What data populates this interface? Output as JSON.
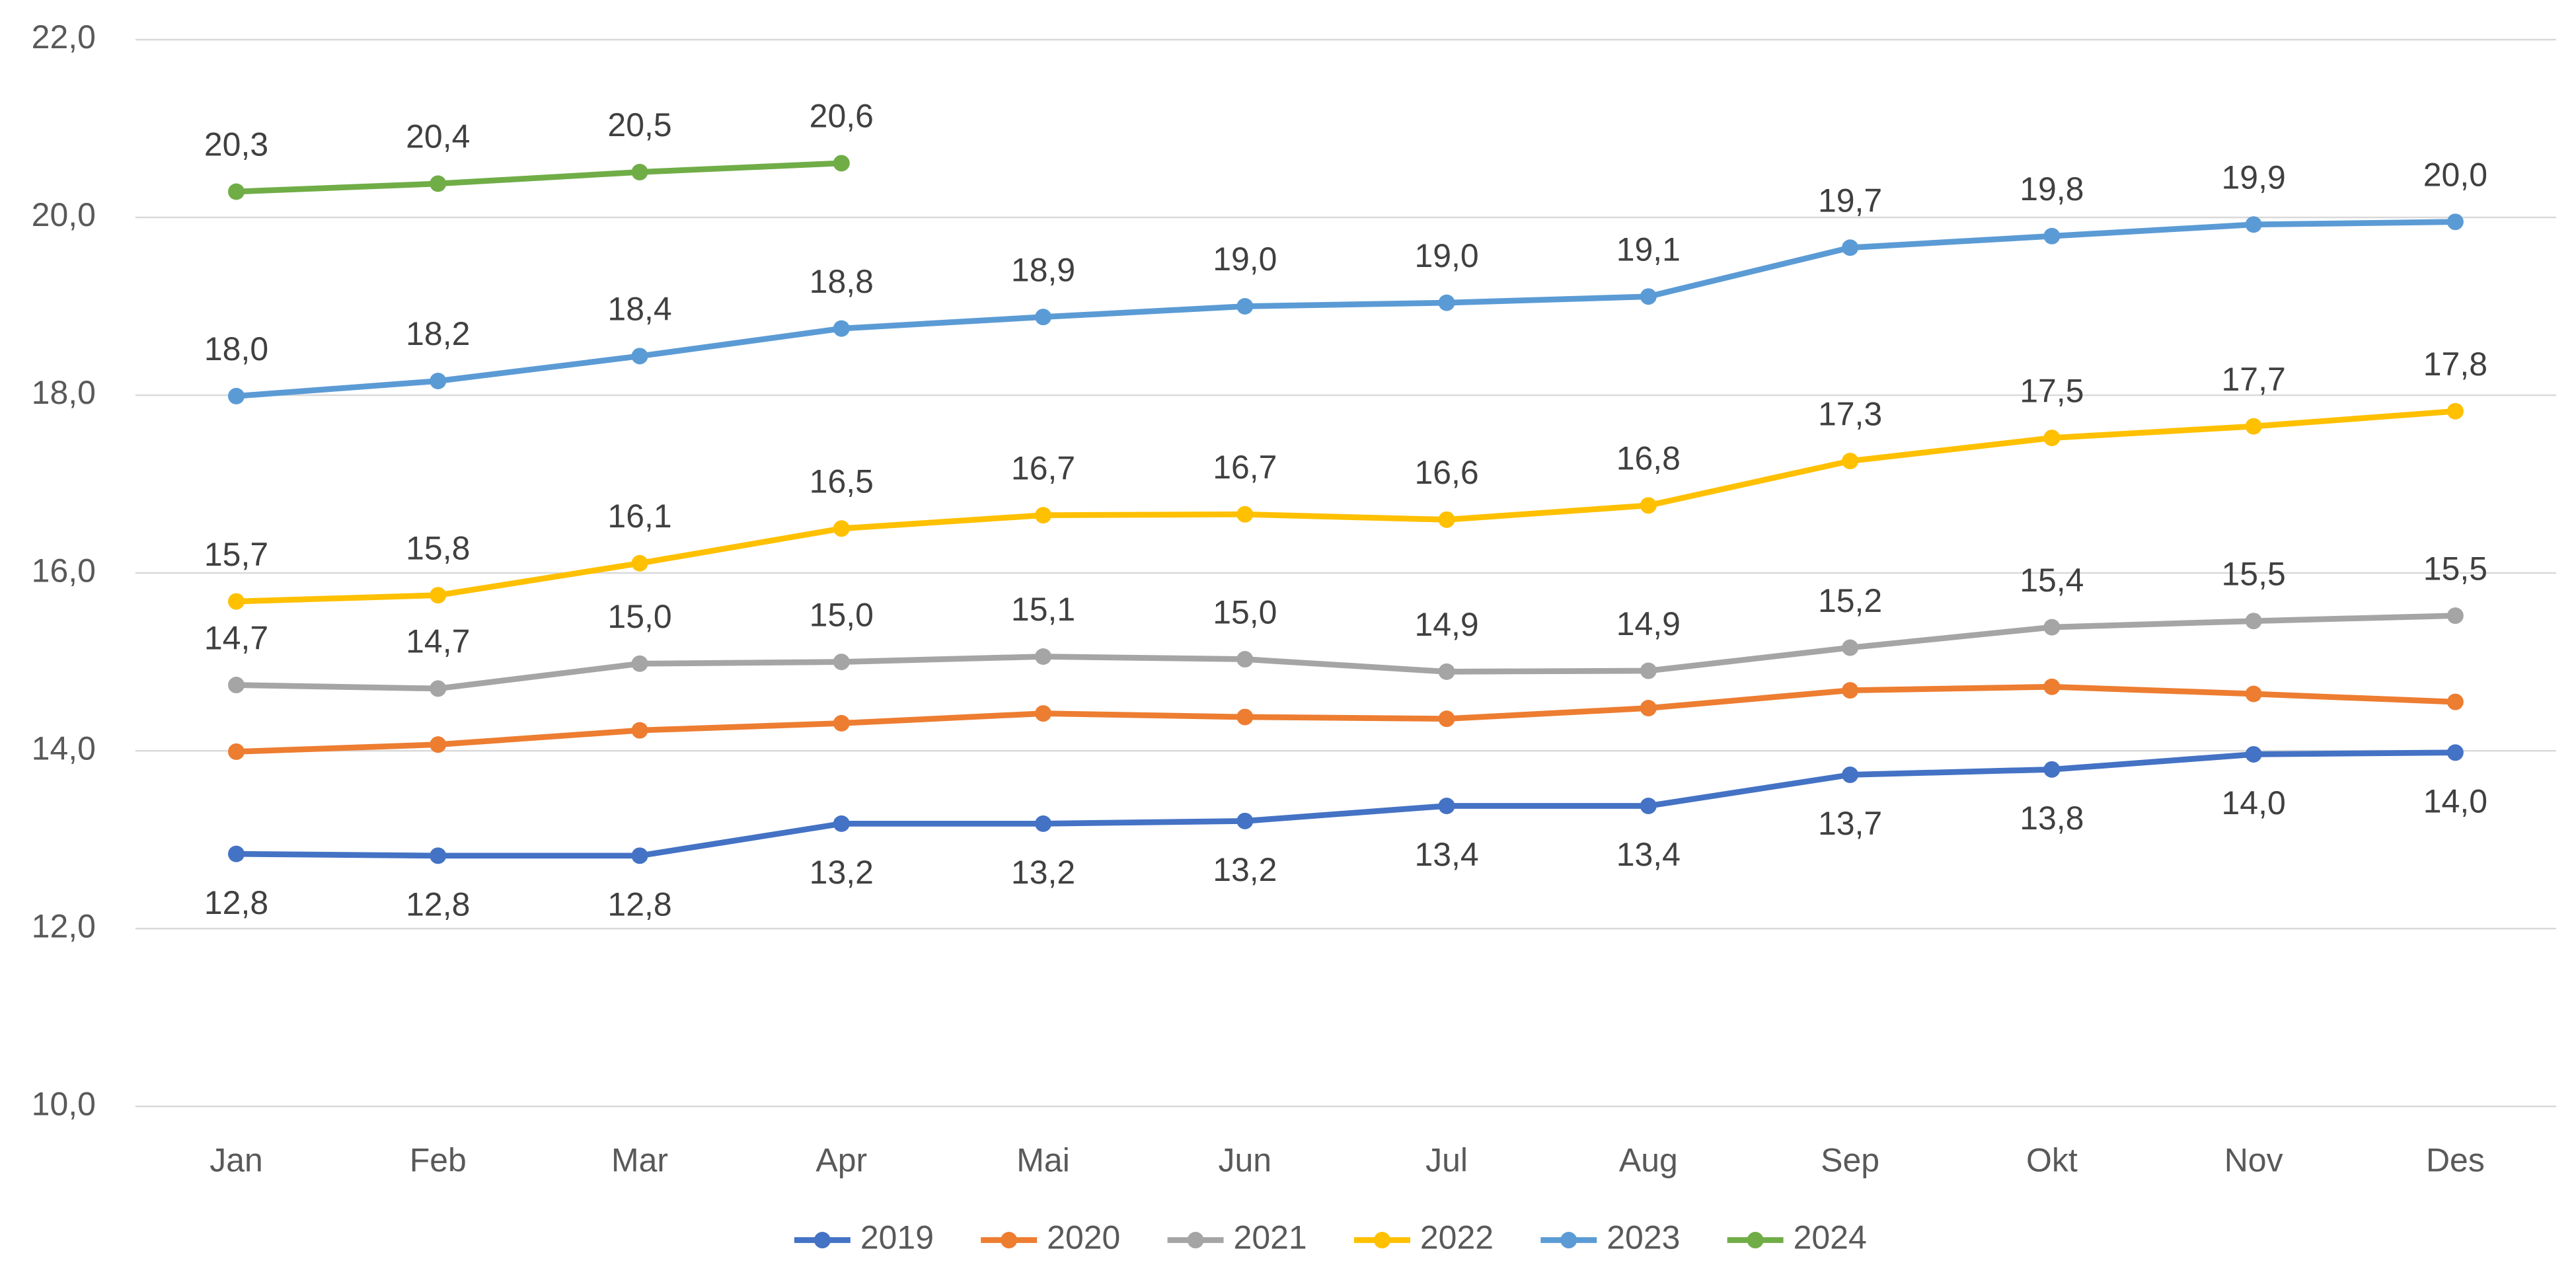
{
  "chart_data": {
    "type": "line",
    "categories": [
      "Jan",
      "Feb",
      "Mar",
      "Apr",
      "Mai",
      "Jun",
      "Jul",
      "Aug",
      "Sep",
      "Okt",
      "Nov",
      "Des"
    ],
    "ylim": [
      10,
      22
    ],
    "yticks": [
      {
        "value": 10,
        "label": "10,0"
      },
      {
        "value": 12,
        "label": "12,0"
      },
      {
        "value": 14,
        "label": "14,0"
      },
      {
        "value": 16,
        "label": "16,0"
      },
      {
        "value": 18,
        "label": "18,0"
      },
      {
        "value": 20,
        "label": "20,0"
      },
      {
        "value": 22,
        "label": "22,0"
      }
    ],
    "grid": true,
    "legend": "bottom",
    "series": [
      {
        "name": "2019",
        "color": "#4472c4",
        "label_position": "below",
        "values": [
          12.84,
          12.82,
          12.82,
          13.18,
          13.18,
          13.21,
          13.38,
          13.38,
          13.73,
          13.79,
          13.96,
          13.98
        ],
        "value_labels": [
          "12,8",
          "12,8",
          "12,8",
          "13,2",
          "13,2",
          "13,2",
          "13,4",
          "13,4",
          "13,7",
          "13,8",
          "14,0",
          "14,0"
        ]
      },
      {
        "name": "2020",
        "color": "#ed7d31",
        "values": [
          13.99,
          14.07,
          14.23,
          14.31,
          14.42,
          14.38,
          14.36,
          14.48,
          14.68,
          14.72,
          14.64,
          14.55
        ]
      },
      {
        "name": "2021",
        "color": "#a5a5a5",
        "label_position": "above",
        "values": [
          14.74,
          14.7,
          14.98,
          15.0,
          15.06,
          15.03,
          14.89,
          14.9,
          15.16,
          15.39,
          15.46,
          15.52
        ],
        "value_labels": [
          "14,7",
          "14,7",
          "15,0",
          "15,0",
          "15,1",
          "15,0",
          "14,9",
          "14,9",
          "15,2",
          "15,4",
          "15,5",
          "15,5"
        ]
      },
      {
        "name": "2022",
        "color": "#ffc000",
        "label_position": "above",
        "values": [
          15.68,
          15.75,
          16.11,
          16.5,
          16.65,
          16.66,
          16.6,
          16.76,
          17.26,
          17.52,
          17.65,
          17.82
        ],
        "value_labels": [
          "15,7",
          "15,8",
          "16,1",
          "16,5",
          "16,7",
          "16,7",
          "16,6",
          "16,8",
          "17,3",
          "17,5",
          "17,7",
          "17,8"
        ]
      },
      {
        "name": "2023",
        "color": "#5b9bd5",
        "label_position": "above",
        "values": [
          17.99,
          18.16,
          18.44,
          18.75,
          18.88,
          19.0,
          19.04,
          19.11,
          19.66,
          19.79,
          19.92,
          19.95
        ],
        "value_labels": [
          "18,0",
          "18,2",
          "18,4",
          "18,8",
          "18,9",
          "19,0",
          "19,0",
          "19,1",
          "19,7",
          "19,8",
          "19,9",
          "20,0"
        ]
      },
      {
        "name": "2024",
        "color": "#70ad47",
        "label_position": "above",
        "values": [
          20.29,
          20.38,
          20.51,
          20.61,
          null,
          null,
          null,
          null,
          null,
          null,
          null,
          null
        ],
        "value_labels": [
          "20,3",
          "20,4",
          "20,5",
          "20,6",
          null,
          null,
          null,
          null,
          null,
          null,
          null,
          null
        ]
      }
    ]
  }
}
